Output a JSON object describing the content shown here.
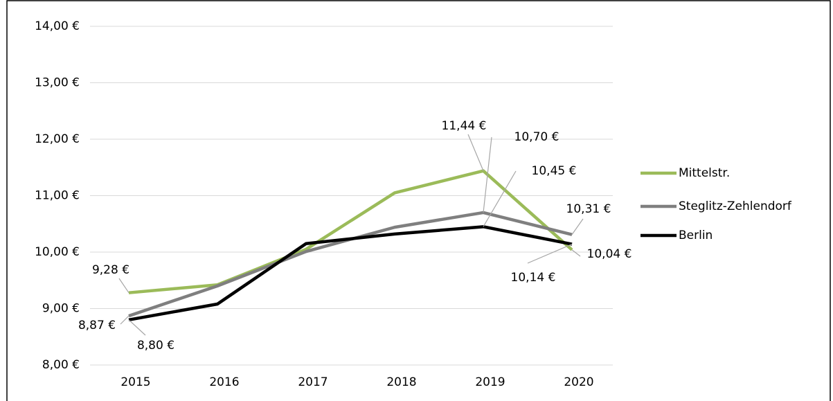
{
  "chart_data": {
    "type": "line",
    "categories": [
      "2015",
      "2016",
      "2017",
      "2018",
      "2019",
      "2020"
    ],
    "series": [
      {
        "name": "Mittelstr.",
        "color": "#9bbb59",
        "values": [
          9.28,
          9.42,
          10.05,
          11.05,
          11.44,
          10.04
        ],
        "value_labels": [
          "9,28 €",
          null,
          null,
          null,
          "11,44 €",
          "10,04 €"
        ]
      },
      {
        "name": "Steglitz-Zehlendorf",
        "color": "#7f7f7f",
        "values": [
          8.87,
          9.4,
          10.01,
          10.44,
          10.7,
          10.31
        ],
        "value_labels": [
          "8,87 €",
          null,
          null,
          null,
          "10,70 €",
          "10,31 €"
        ]
      },
      {
        "name": "Berlin",
        "color": "#000000",
        "values": [
          8.8,
          9.08,
          10.15,
          10.32,
          10.45,
          10.14
        ],
        "value_labels": [
          "8,80 €",
          null,
          null,
          null,
          "10,45 €",
          "10,14 €"
        ]
      }
    ],
    "ylim": [
      8,
      14
    ],
    "yticks": [
      {
        "value": 8,
        "label": "8,00 €"
      },
      {
        "value": 9,
        "label": "9,00 €"
      },
      {
        "value": 10,
        "label": "10,00 €"
      },
      {
        "value": 11,
        "label": "11,00 €"
      },
      {
        "value": 12,
        "label": "12,00 €"
      },
      {
        "value": 13,
        "label": "13,00 €"
      },
      {
        "value": 14,
        "label": "14,00 €"
      }
    ],
    "grid": true,
    "legend": "right"
  }
}
